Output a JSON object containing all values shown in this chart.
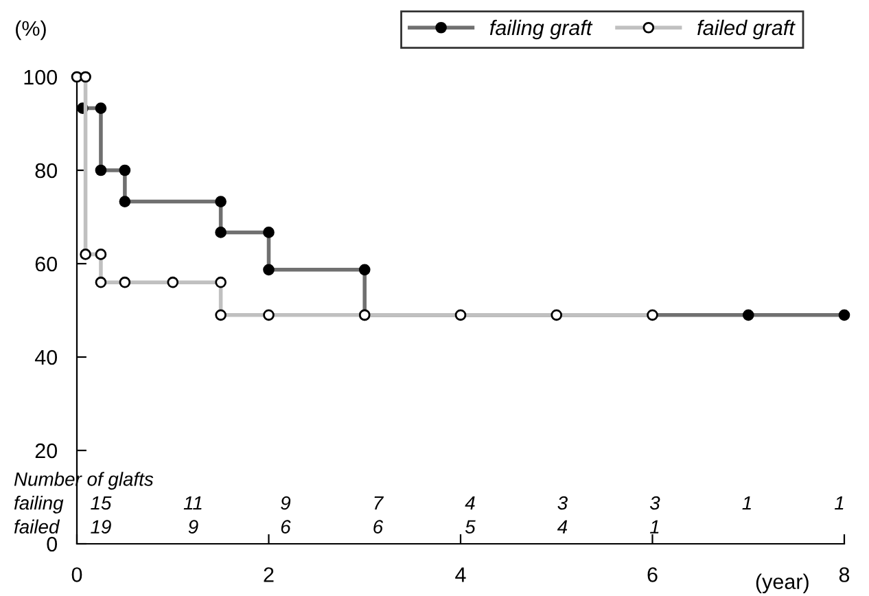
{
  "chart_data": {
    "type": "line",
    "xlabel": "(year)",
    "ylabel": "(%)",
    "series": [
      {
        "name": "failing graft",
        "color": "#707070",
        "marker": "circle",
        "x": [
          0.06,
          0.25,
          0.25,
          0.5,
          0.5,
          1.5,
          1.5,
          2,
          2,
          3,
          3,
          7,
          8
        ],
        "values": [
          93.3,
          93.3,
          80,
          80,
          73.3,
          73.3,
          66.7,
          66.7,
          58.7,
          58.7,
          49,
          49,
          49
        ]
      },
      {
        "name": "failed graft",
        "color": "#c0c0c0",
        "marker": "circle",
        "x": [
          0,
          0.09,
          0.09,
          0.25,
          0.25,
          0.5,
          1,
          1.5,
          1.5,
          2,
          3,
          4,
          5,
          6
        ],
        "values": [
          100,
          100,
          62,
          62,
          56,
          56,
          56,
          56,
          49,
          49,
          49,
          49,
          49,
          49
        ]
      }
    ],
    "xlim": [
      0,
      8
    ],
    "xticks": [
      0,
      2,
      4,
      6,
      8
    ],
    "ylim": [
      0,
      100
    ],
    "yticks": [
      0,
      20,
      40,
      60,
      80,
      100
    ],
    "grid": false,
    "legend": "top right",
    "annotations": [
      "Number of glafts",
      "failing 15 11 9 7 4 3 3 1 1",
      "failed 19 9 6 6 5 4 1"
    ]
  }
}
